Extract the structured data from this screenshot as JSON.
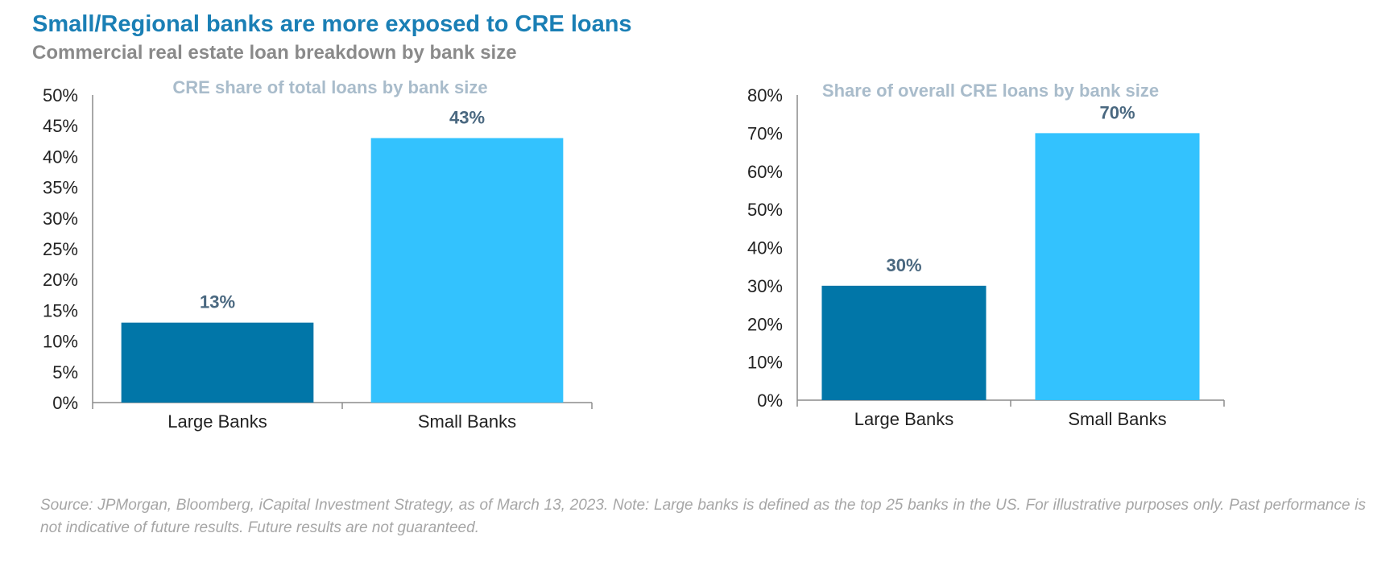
{
  "header": {
    "title": "Small/Regional banks are more exposed to CRE loans",
    "subtitle": "Commercial real estate loan breakdown by bank size"
  },
  "colors": {
    "large": "#0176a8",
    "small": "#33c2fe",
    "axis": "#8c8c8c"
  },
  "chart_data": [
    {
      "type": "bar",
      "title": "CRE share of total loans by bank size",
      "categories": [
        "Large Banks",
        "Small Banks"
      ],
      "values": [
        13,
        43
      ],
      "data_labels": [
        "13%",
        "43%"
      ],
      "ylim": [
        0,
        50
      ],
      "yticks": [
        0,
        5,
        10,
        15,
        20,
        25,
        30,
        35,
        40,
        45,
        50
      ],
      "ytick_labels": [
        "0%",
        "5%",
        "10%",
        "15%",
        "20%",
        "25%",
        "30%",
        "35%",
        "40%",
        "45%",
        "50%"
      ],
      "grid": false
    },
    {
      "type": "bar",
      "title": "Share of overall CRE loans by bank size",
      "categories": [
        "Large Banks",
        "Small Banks"
      ],
      "values": [
        30,
        70
      ],
      "data_labels": [
        "30%",
        "70%"
      ],
      "ylim": [
        0,
        80
      ],
      "yticks": [
        0,
        10,
        20,
        30,
        40,
        50,
        60,
        70,
        80
      ],
      "ytick_labels": [
        "0%",
        "10%",
        "20%",
        "30%",
        "40%",
        "50%",
        "60%",
        "70%",
        "80%"
      ],
      "grid": false
    }
  ],
  "footer": {
    "source": "Source: JPMorgan, Bloomberg, iCapital Investment Strategy, as of March 13, 2023. Note: Large banks is defined as the top 25 banks in the US. For illustrative purposes only. Past performance is not indicative of future results. Future results are not guaranteed."
  }
}
